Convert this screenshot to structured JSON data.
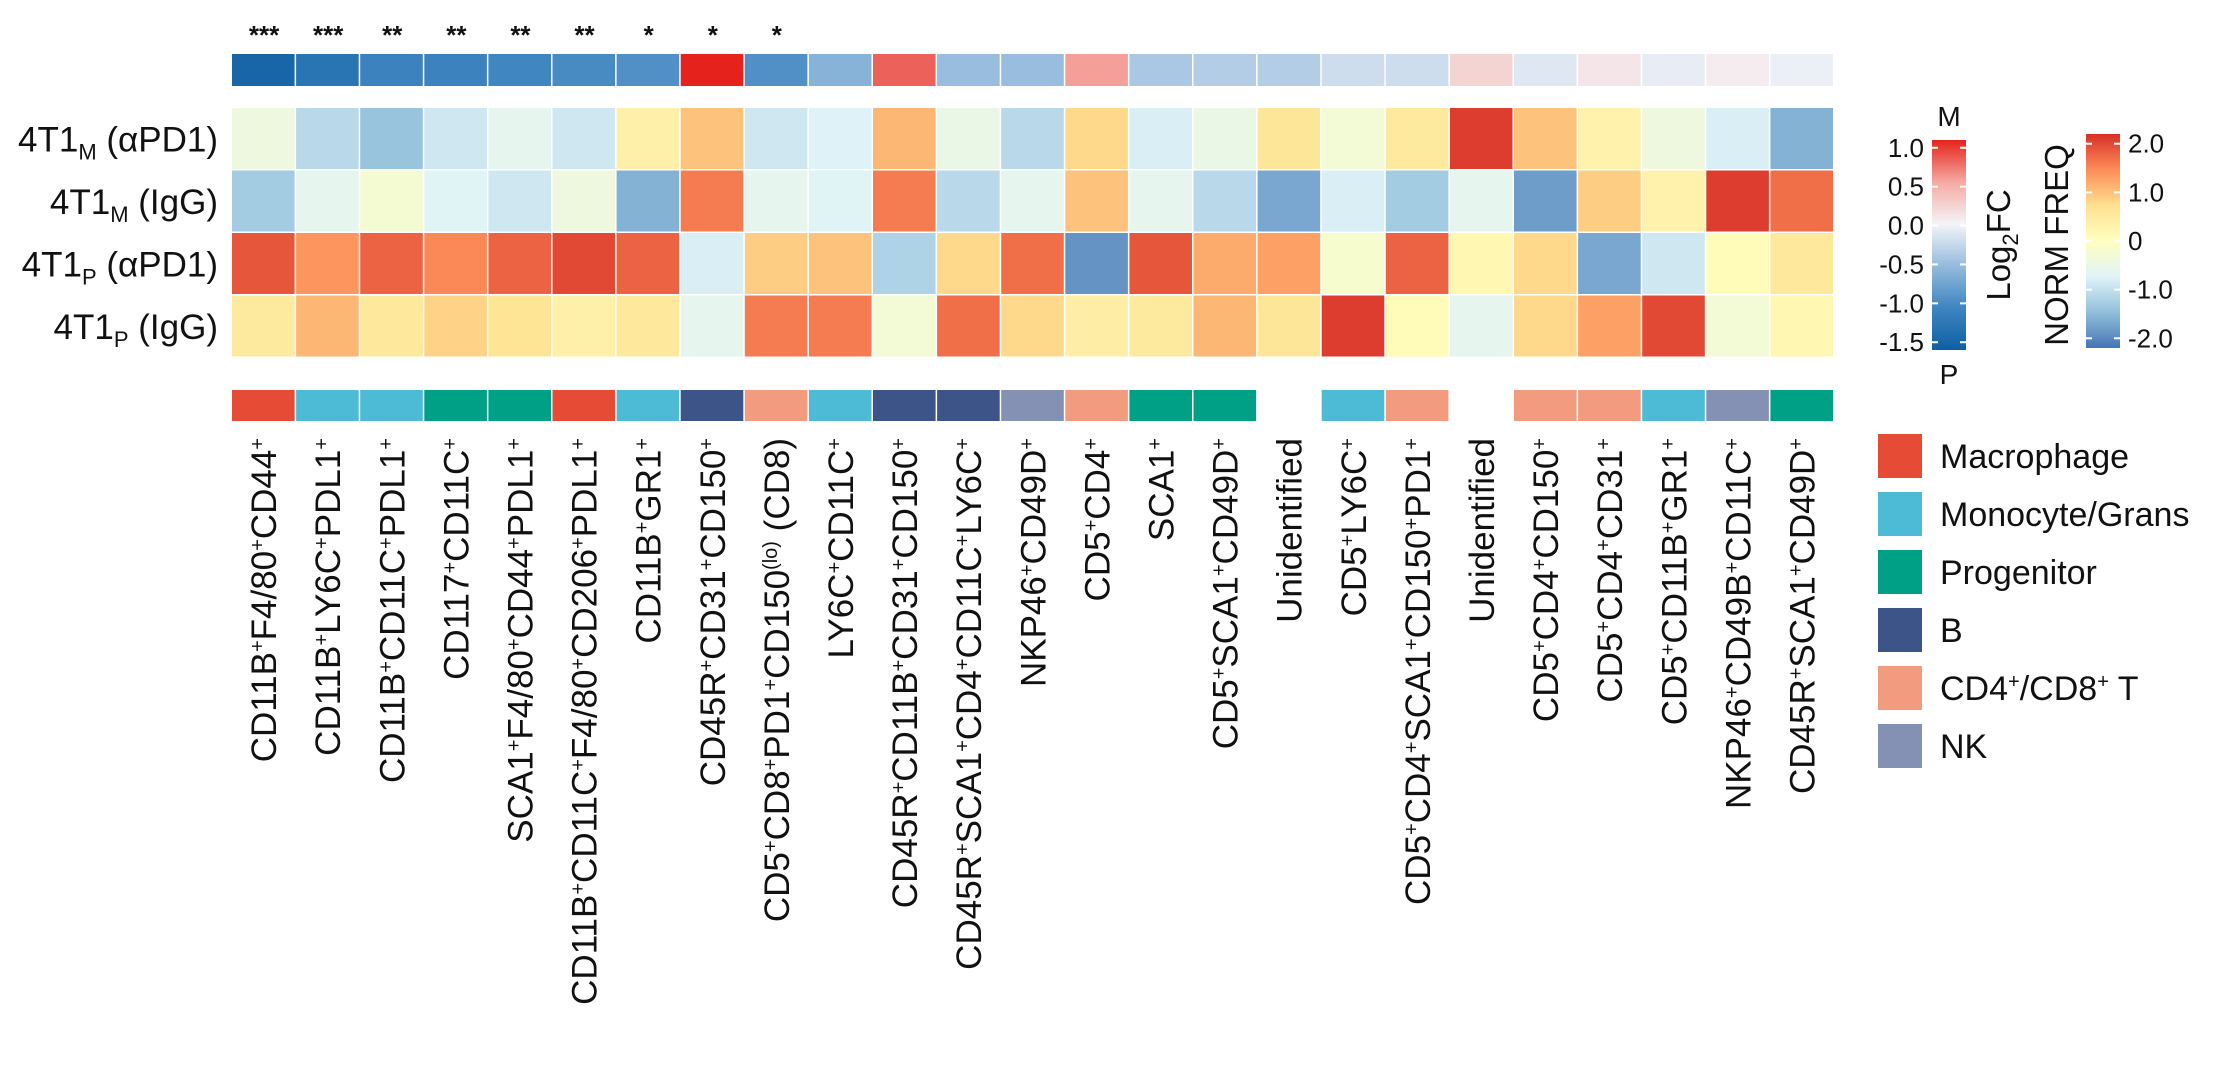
{
  "chart_data": {
    "type": "heatmap",
    "rows": [
      {
        "prefix": "4T1",
        "sub": "M",
        "suffix": " (αPD1)"
      },
      {
        "prefix": "4T1",
        "sub": "M",
        "suffix": " (IgG)"
      },
      {
        "prefix": "4T1",
        "sub": "P",
        "suffix": " (αPD1)"
      },
      {
        "prefix": "4T1",
        "sub": "P",
        "suffix": " (IgG)"
      }
    ],
    "columns": [
      {
        "parts": [
          [
            "CD11B",
            "+"
          ],
          [
            "F4/80",
            "+"
          ],
          [
            "CD44",
            "+"
          ]
        ],
        "tail": "",
        "celltype": "Macrophage",
        "sig": "***",
        "log2fc": -1.5
      },
      {
        "parts": [
          [
            "CD11B",
            "+"
          ],
          [
            "LY6C",
            "+"
          ],
          [
            "PDL1",
            "+"
          ]
        ],
        "tail": "",
        "celltype": "Monocyte/Grans",
        "sig": "***",
        "log2fc": -1.3
      },
      {
        "parts": [
          [
            "CD11B",
            "+"
          ],
          [
            "CD11C",
            "+"
          ],
          [
            "PDL1",
            "+"
          ]
        ],
        "tail": "",
        "celltype": "Monocyte/Grans",
        "sig": "**",
        "log2fc": -1.1
      },
      {
        "parts": [
          [
            "CD117",
            "+"
          ],
          [
            "CD11C",
            "+"
          ]
        ],
        "tail": "",
        "celltype": "Progenitor",
        "sig": "**",
        "log2fc": -1.1
      },
      {
        "parts": [
          [
            "SCA1",
            "+"
          ],
          [
            "F4/80",
            "+"
          ],
          [
            "CD44",
            "+"
          ],
          [
            "PDL1",
            "+"
          ]
        ],
        "tail": "",
        "celltype": "Progenitor",
        "sig": "**",
        "log2fc": -1.05
      },
      {
        "parts": [
          [
            "CD11B",
            "+"
          ],
          [
            "CD11C",
            "+"
          ],
          [
            "F4/80",
            "+"
          ],
          [
            "CD206",
            "+"
          ],
          [
            "PDL1",
            "+"
          ]
        ],
        "tail": "",
        "celltype": "Macrophage",
        "sig": "**",
        "log2fc": -1.0
      },
      {
        "parts": [
          [
            "CD11B",
            "+"
          ],
          [
            "GR1",
            "+"
          ]
        ],
        "tail": "",
        "celltype": "Monocyte/Grans",
        "sig": "*",
        "log2fc": -0.95
      },
      {
        "parts": [
          [
            "CD45R",
            "+"
          ],
          [
            "CD31",
            "+"
          ],
          [
            "CD150",
            "+"
          ]
        ],
        "tail": "",
        "celltype": "B",
        "sig": "*",
        "log2fc": 1.2
      },
      {
        "parts": [
          [
            "CD5",
            "+"
          ],
          [
            "CD8",
            "+"
          ],
          [
            "PD1",
            "+"
          ],
          [
            "CD150",
            "(lo)"
          ]
        ],
        "tail": " (CD8)",
        "celltype": "CD4+/CD8+ T",
        "sig": "*",
        "log2fc": -0.95
      },
      {
        "parts": [
          [
            "LY6C",
            "+"
          ],
          [
            "CD11C",
            "+"
          ]
        ],
        "tail": "",
        "celltype": "Monocyte/Grans",
        "sig": "",
        "log2fc": -0.6
      },
      {
        "parts": [
          [
            "CD45R",
            "+"
          ],
          [
            "CD11B",
            "+"
          ],
          [
            "CD31",
            "+"
          ],
          [
            "CD150",
            "+"
          ]
        ],
        "tail": "",
        "celltype": "B",
        "sig": "",
        "log2fc": 0.85
      },
      {
        "parts": [
          [
            "CD45R",
            "+"
          ],
          [
            "SCA1",
            "+"
          ],
          [
            "CD4",
            "+"
          ],
          [
            "CD11C",
            "+"
          ],
          [
            "LY6C",
            "+"
          ]
        ],
        "tail": "",
        "celltype": "B",
        "sig": "",
        "log2fc": -0.5
      },
      {
        "parts": [
          [
            "NKP46",
            "+"
          ],
          [
            "CD49D",
            "+"
          ]
        ],
        "tail": "",
        "celltype": "NK",
        "sig": "",
        "log2fc": -0.5
      },
      {
        "parts": [
          [
            "CD5",
            "+"
          ],
          [
            "CD4",
            "+"
          ]
        ],
        "tail": "",
        "celltype": "CD4+/CD8+ T",
        "sig": "",
        "log2fc": 0.6
      },
      {
        "parts": [
          [
            "SCA1",
            "+"
          ]
        ],
        "tail": "",
        "celltype": "Progenitor",
        "sig": "",
        "log2fc": -0.4
      },
      {
        "parts": [
          [
            "CD5",
            "+"
          ],
          [
            "SCA1",
            "+"
          ],
          [
            "CD49D",
            "+"
          ]
        ],
        "tail": "",
        "celltype": "Progenitor",
        "sig": "",
        "log2fc": -0.35
      },
      {
        "parts": [
          [
            "Unidentified",
            ""
          ]
        ],
        "tail": "",
        "celltype": "",
        "sig": "",
        "log2fc": -0.35
      },
      {
        "parts": [
          [
            "CD5",
            "+"
          ],
          [
            "LY6C",
            "+"
          ]
        ],
        "tail": "",
        "celltype": "Monocyte/Grans",
        "sig": "",
        "log2fc": -0.2
      },
      {
        "parts": [
          [
            "CD5",
            "+"
          ],
          [
            "CD4",
            "+"
          ],
          [
            "SCA1",
            "+"
          ],
          [
            "CD150",
            "+"
          ],
          [
            "PD1",
            "+"
          ]
        ],
        "tail": "",
        "celltype": "CD4+/CD8+ T",
        "sig": "",
        "log2fc": -0.2
      },
      {
        "parts": [
          [
            "Unidentified",
            ""
          ]
        ],
        "tail": "",
        "celltype": "",
        "sig": "",
        "log2fc": 0.25
      },
      {
        "parts": [
          [
            "CD5",
            "+"
          ],
          [
            "CD4",
            "+"
          ],
          [
            "CD150",
            "+"
          ]
        ],
        "tail": "",
        "celltype": "CD4+/CD8+ T",
        "sig": "",
        "log2fc": -0.1
      },
      {
        "parts": [
          [
            "CD5",
            "+"
          ],
          [
            "CD4",
            "+"
          ],
          [
            "CD31",
            "+"
          ]
        ],
        "tail": "",
        "celltype": "CD4+/CD8+ T",
        "sig": "",
        "log2fc": 0.12
      },
      {
        "parts": [
          [
            "CD5",
            "+"
          ],
          [
            "CD11B",
            "+"
          ],
          [
            "GR1",
            "+"
          ]
        ],
        "tail": "",
        "celltype": "Monocyte/Grans",
        "sig": "",
        "log2fc": -0.05
      },
      {
        "parts": [
          [
            "NKP46",
            "+"
          ],
          [
            "CD49B",
            "+"
          ],
          [
            "CD11C",
            "+"
          ]
        ],
        "tail": "",
        "celltype": "NK",
        "sig": "",
        "log2fc": 0.08
      },
      {
        "parts": [
          [
            "CD45R",
            "+"
          ],
          [
            "SCA1",
            "+"
          ],
          [
            "CD49D",
            "+"
          ]
        ],
        "tail": "",
        "celltype": "Progenitor",
        "sig": "",
        "log2fc": -0.03
      }
    ],
    "values": [
      [
        -0.4,
        -1.1,
        -1.4,
        -0.9,
        -0.6,
        -0.9,
        0.35,
        1.0,
        -0.9,
        -0.75,
        1.1,
        -0.5,
        -1.1,
        0.8,
        -0.8,
        -0.5,
        0.6,
        -0.3,
        0.5,
        2.1,
        1.0,
        0.3,
        -0.4,
        -0.8,
        -1.6
      ],
      [
        -1.3,
        -0.6,
        -0.25,
        -0.7,
        -0.9,
        -0.4,
        -1.6,
        1.6,
        -0.6,
        -0.7,
        1.6,
        -1.1,
        -0.6,
        1.0,
        -0.6,
        -1.1,
        -1.7,
        -0.8,
        -1.3,
        -0.6,
        -1.8,
        0.9,
        0.3,
        2.1,
        1.7
      ],
      [
        1.9,
        1.4,
        1.8,
        1.5,
        1.8,
        2.0,
        1.8,
        -0.8,
        0.9,
        1.0,
        -1.2,
        0.8,
        1.7,
        -1.9,
        1.9,
        1.2,
        1.3,
        -0.2,
        1.8,
        0.2,
        0.8,
        -1.7,
        -0.9,
        0.1,
        0.55
      ],
      [
        0.5,
        1.1,
        0.55,
        0.85,
        0.65,
        0.35,
        0.55,
        -0.6,
        1.6,
        1.6,
        -0.3,
        1.7,
        0.8,
        0.4,
        0.5,
        1.1,
        0.6,
        2.1,
        0.1,
        -0.6,
        0.8,
        1.3,
        2.0,
        -0.3,
        0.2
      ]
    ],
    "celltype_legend": [
      {
        "label": "Macrophage",
        "color": "#E64B35"
      },
      {
        "label": "Monocyte/Grans",
        "color": "#4DBBD5"
      },
      {
        "label": "Progenitor",
        "color": "#00A087"
      },
      {
        "label": "B",
        "color": "#3C5488"
      },
      {
        "label": "CD4+/CD8+ T",
        "color": "#F39B7F"
      },
      {
        "label": "NK",
        "color": "#8491B4"
      }
    ],
    "log2fc_scale": {
      "title_main": "Log",
      "title_sub": "2",
      "title_end": "FC",
      "top_label": "M",
      "bottom_label": "P",
      "ticks": [
        1.0,
        0.5,
        0.0,
        -0.5,
        -1.0,
        -1.5
      ],
      "tick_labels": [
        "1.0",
        "0.5",
        "0.0",
        "-0.5",
        "-1.0",
        "-1.5"
      ],
      "range": [
        -1.6,
        1.1
      ],
      "colors": [
        "#0F5FA3",
        "#3E85C0",
        "#95BBDD",
        "#F4F4F8",
        "#F5A9A1",
        "#E5231C"
      ]
    },
    "norm_freq_scale": {
      "title": "NORM FREQ",
      "ticks": [
        2.0,
        1.0,
        0,
        -1.0,
        -2.0
      ],
      "tick_labels": [
        "2.0",
        "1.0",
        "0",
        "-1.0",
        "-2.0"
      ],
      "range": [
        -2.2,
        2.2
      ],
      "colors": [
        "#4575B4",
        "#91BFDB",
        "#E0F3F8",
        "#FFFFBF",
        "#FEE090",
        "#FC8D59",
        "#D73027"
      ]
    }
  }
}
